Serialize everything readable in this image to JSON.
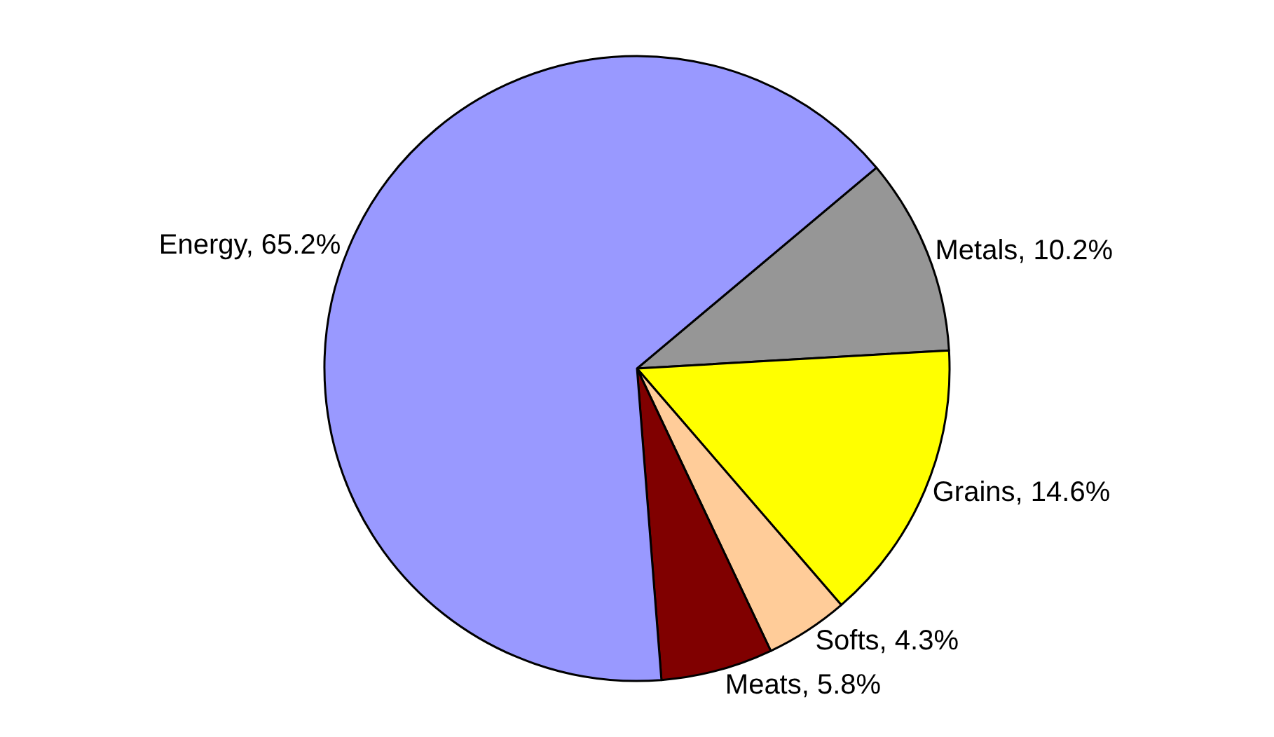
{
  "chart_data": {
    "type": "pie",
    "categories": [
      "Metals",
      "Grains",
      "Softs",
      "Meats",
      "Energy"
    ],
    "values": [
      10.2,
      14.6,
      4.3,
      5.8,
      65.2
    ],
    "value_labels": [
      "10.2%",
      "14.6%",
      "4.3%",
      "5.8%",
      "65.2%"
    ],
    "colors": [
      "#969696",
      "#ffff00",
      "#ffcc99",
      "#800000",
      "#9999ff"
    ],
    "legend": false
  }
}
